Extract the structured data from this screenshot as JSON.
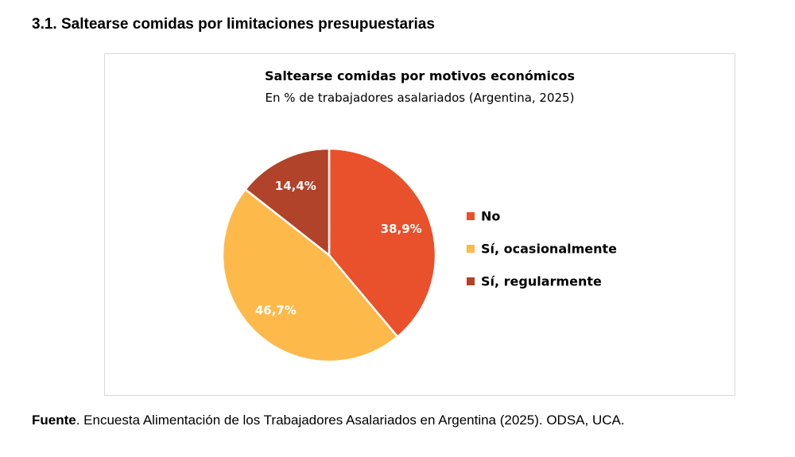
{
  "heading": "3.1. Saltearse comidas por limitaciones presupuestarias",
  "source": {
    "label": "Fuente",
    "text": ". Encuesta Alimentación de los Trabajadores Asalariados en Argentina (2025). ODSA, UCA."
  },
  "chart_data": {
    "type": "pie",
    "title": "Saltearse comidas por motivos económicos",
    "subtitle": "En % de trabajadores asalariados (Argentina, 2025)",
    "categories": [
      "No",
      "Sí, ocasionalmente",
      "Sí, regularmente"
    ],
    "values": [
      38.9,
      46.7,
      14.4
    ],
    "labels": [
      "38,9%",
      "46,7%",
      "14,4%"
    ],
    "colors": [
      "#e8512b",
      "#fdb94a",
      "#b0432a"
    ],
    "legend_position": "right",
    "start_angle_deg": 0,
    "direction": "clockwise"
  }
}
